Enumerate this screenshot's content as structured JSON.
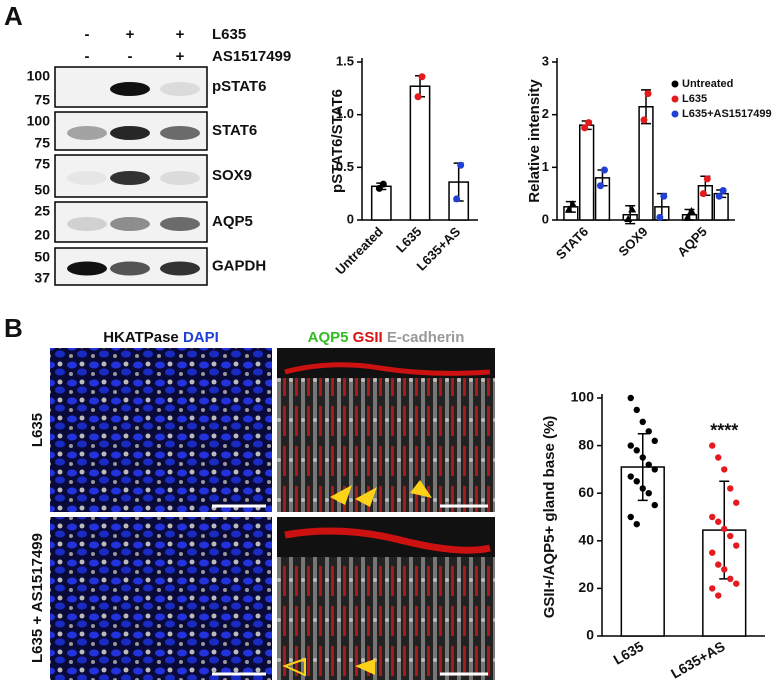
{
  "panels": [
    "A",
    "B"
  ],
  "blot": {
    "treatments": [
      {
        "label": "L635",
        "signs": [
          "-",
          "+",
          "+"
        ]
      },
      {
        "label": "AS1517499",
        "signs": [
          "-",
          "-",
          "+"
        ]
      }
    ],
    "rows": [
      {
        "name": "pSTAT6",
        "markers": [
          "100",
          "75"
        ]
      },
      {
        "name": "STAT6",
        "markers": [
          "100",
          "75"
        ]
      },
      {
        "name": "SOX9",
        "markers": [
          "75",
          "50"
        ]
      },
      {
        "name": "AQP5",
        "markers": [
          "25",
          "20"
        ]
      },
      {
        "name": "GAPDH",
        "markers": [
          "50",
          "37"
        ]
      }
    ]
  },
  "microscopy": {
    "left_title": [
      "HKATPase",
      "DAPI"
    ],
    "right_title": [
      "AQP5",
      "GSII",
      "E-cadherin"
    ],
    "rows": [
      "L635",
      "L635 + AS1517499"
    ]
  },
  "chart_data": [
    {
      "type": "bar",
      "y_label": "pSTAT6/STAT6",
      "categories": [
        "Untreated",
        "L635",
        "L635+AS"
      ],
      "values": [
        0.32,
        1.27,
        0.36
      ],
      "errors": [
        0.03,
        0.1,
        0.18
      ],
      "points": [
        [
          0.3,
          0.34
        ],
        [
          1.17,
          1.36
        ],
        [
          0.2,
          0.52
        ]
      ],
      "point_colors": [
        "#000000",
        "#e41a1c",
        "#1f3fd6"
      ],
      "ylim": [
        0,
        1.5
      ],
      "yticks": [
        0,
        0.5,
        {
          "value": 1,
          "label": "1.0"
        },
        1.5
      ]
    },
    {
      "type": "grouped-bar",
      "y_label": "Relative intensity",
      "categories": [
        "STAT6",
        "SOX9",
        "AQP5"
      ],
      "series": [
        {
          "name": "Untreated",
          "color": "#000000",
          "values": [
            0.25,
            0.1,
            0.1
          ],
          "errors": [
            0.1,
            0.17,
            0.1
          ],
          "points": [
            [
              0.2,
              0.3
            ],
            [
              0.02,
              0.2
            ],
            [
              0.05,
              0.17
            ]
          ]
        },
        {
          "name": "L635",
          "color": "#e41a1c",
          "values": [
            1.8,
            2.15,
            0.65
          ],
          "errors": [
            0.08,
            0.32,
            0.18
          ],
          "points": [
            [
              1.75,
              1.85
            ],
            [
              1.9,
              2.4
            ],
            [
              0.5,
              0.78
            ]
          ]
        },
        {
          "name": "L635+AS1517499",
          "color": "#1f3fd6",
          "values": [
            0.8,
            0.25,
            0.5
          ],
          "errors": [
            0.15,
            0.25,
            0.07
          ],
          "points": [
            [
              0.65,
              0.95
            ],
            [
              0.05,
              0.45
            ],
            [
              0.45,
              0.56
            ]
          ]
        }
      ],
      "legend": "upper right",
      "ylim": [
        0,
        3
      ],
      "yticks": [
        0,
        1,
        2,
        3
      ]
    },
    {
      "type": "bar",
      "y_label": "GSII+/AQP5+ gland base (%)",
      "categories": [
        "L635",
        "L635+AS"
      ],
      "values": [
        71,
        44.5
      ],
      "errors": [
        14,
        20.5
      ],
      "points": [
        [
          100,
          95,
          90,
          86,
          82,
          80,
          78,
          75,
          72,
          70,
          67,
          65,
          62,
          60,
          55,
          50,
          47
        ],
        [
          80,
          75,
          70,
          62,
          56,
          50,
          48,
          45,
          42,
          38,
          35,
          30,
          28,
          24,
          22,
          20,
          17
        ]
      ],
      "point_colors": [
        "#000000",
        "#e41a1c"
      ],
      "annotation": "****",
      "ylim": [
        0,
        100
      ],
      "yticks": [
        0,
        20,
        40,
        60,
        80,
        100
      ]
    }
  ]
}
